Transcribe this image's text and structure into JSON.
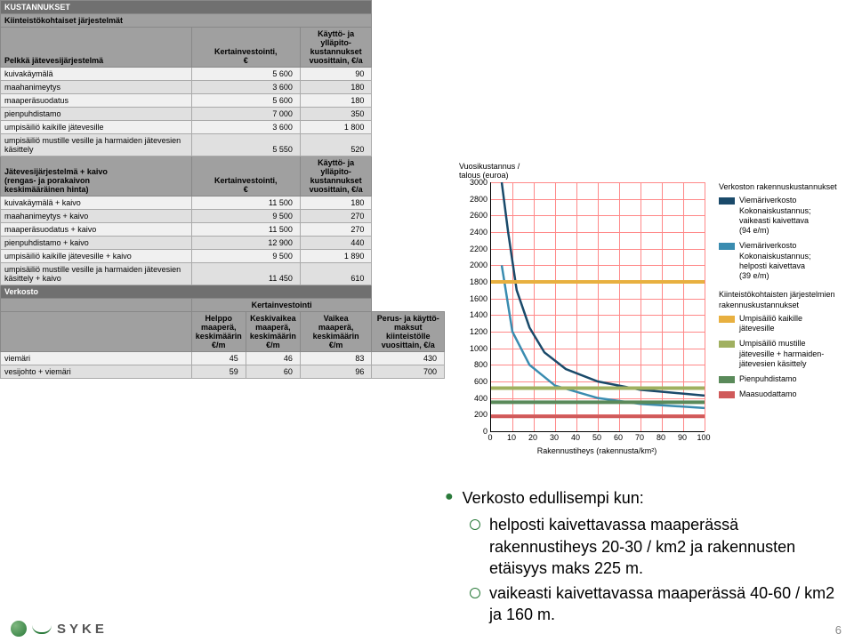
{
  "costs_table": {
    "section1_title": "KUSTANNUKSET",
    "section1_sub": "Kiinteistökohtaiset järjestelmät",
    "group1_label": "Pelkkä jätevesijärjestelmä",
    "group1_col_invest": "Kertainvestointi,\n€",
    "group1_col_annual": "Käyttö- ja ylläpito-\nkustannukset\nvuosittain, €/a",
    "group1_rows": [
      {
        "label": "kuivakäymälä",
        "invest": "5 600",
        "annual": "90"
      },
      {
        "label": "maahanimeytys",
        "invest": "3 600",
        "annual": "180"
      },
      {
        "label": "maaperäsuodatus",
        "invest": "5 600",
        "annual": "180"
      },
      {
        "label": "pienpuhdistamo",
        "invest": "7 000",
        "annual": "350"
      },
      {
        "label": "umpisäiliö kaikille jätevesille",
        "invest": "3 600",
        "annual": "1 800"
      },
      {
        "label": "umpisäiliö mustille vesille ja harmaiden jätevesien käsittely",
        "invest": "5 550",
        "annual": "520"
      }
    ],
    "group2_label": "Jätevesijärjestelmä + kaivo\n(rengas- ja porakaivon\nkeskimääräinen hinta)",
    "group2_col_invest": "Kertainvestointi,\n€",
    "group2_col_annual": "Käyttö- ja ylläpito-\nkustannukset\nvuosittain, €/a",
    "group2_rows": [
      {
        "label": "kuivakäymälä + kaivo",
        "invest": "11 500",
        "annual": "180"
      },
      {
        "label": "maahanimeytys + kaivo",
        "invest": "9 500",
        "annual": "270"
      },
      {
        "label": "maaperäsuodatus + kaivo",
        "invest": "11 500",
        "annual": "270"
      },
      {
        "label": "pienpuhdistamo + kaivo",
        "invest": "12 900",
        "annual": "440"
      },
      {
        "label": "umpisäiliö kaikille jätevesille + kaivo",
        "invest": "9 500",
        "annual": "1 890"
      },
      {
        "label": "umpisäiliö mustille vesille ja harmaiden jätevesien käsittely + kaivo",
        "invest": "11 450",
        "annual": "610"
      }
    ],
    "section3_title": "Verkosto",
    "verkosto_super": "Kertainvestointi",
    "verkosto_cols": [
      "Helppo\nmaaperä,\nkeskimäärin\n€/m",
      "Keskivaikea\nmaaperä,\nkeskimäärin\n€/m",
      "Vaikea\nmaaperä,\nkeskimäärin\n€/m",
      "Perus- ja käyttö-\nmaksut kiinteistölle\nvuosittain, €/a"
    ],
    "verkosto_rows": [
      {
        "label": "viemäri",
        "vals": [
          "45",
          "46",
          "83",
          "430"
        ]
      },
      {
        "label": "vesijohto + viemäri",
        "vals": [
          "59",
          "60",
          "96",
          "700"
        ]
      }
    ]
  },
  "chart": {
    "ylabel": "Vuosikustannus /\ntalous (euroa)",
    "xlabel": "Rakennustiheys (rakennusta/km²)",
    "xlim": [
      0,
      100
    ],
    "ylim": [
      0,
      3000
    ],
    "xticks": [
      0,
      10,
      20,
      30,
      40,
      50,
      60,
      70,
      80,
      90,
      100
    ],
    "yticks": [
      0,
      200,
      400,
      600,
      800,
      1000,
      1200,
      1400,
      1600,
      1800,
      2000,
      2200,
      2400,
      2600,
      2800,
      3000
    ],
    "grid_color": "#ff8888",
    "background_color": "#ffffff",
    "legend_title1": "Verkoston rakennuskustannukset",
    "legend_title2": "Kiinteistökohtaisten järjestelmien\nrakennuskustannukset",
    "series_curves": [
      {
        "name": "s1",
        "label": "Viemäriverkosto\nKokonaiskustannus;\nvaikeasti kaivettava\n(94 e/m)",
        "color": "#1a4a6a",
        "width": 2.5,
        "points": [
          [
            5,
            3000
          ],
          [
            8,
            2400
          ],
          [
            12,
            1700
          ],
          [
            18,
            1250
          ],
          [
            25,
            950
          ],
          [
            35,
            750
          ],
          [
            50,
            600
          ],
          [
            70,
            500
          ],
          [
            100,
            430
          ]
        ]
      },
      {
        "name": "s2",
        "label": "Viemäriverkosto\nKokonaiskustannus;\nhelposti kaivettava\n(39 e/m)",
        "color": "#3a8cb0",
        "width": 2.5,
        "points": [
          [
            5,
            2000
          ],
          [
            10,
            1200
          ],
          [
            18,
            800
          ],
          [
            30,
            550
          ],
          [
            50,
            400
          ],
          [
            70,
            330
          ],
          [
            100,
            280
          ]
        ]
      }
    ],
    "series_flat": [
      {
        "name": "f1",
        "label": "Umpisäiliö kaikille\njätevesille",
        "color": "#e8b040",
        "y": 1800
      },
      {
        "name": "f2",
        "label": "Umpisäiliö mustille\njätevesille + harmaiden-\njätevesien käsittely",
        "color": "#a0b060",
        "y": 520
      },
      {
        "name": "f3",
        "label": "Pienpuhdistamo",
        "color": "#5a8a5a",
        "y": 350
      },
      {
        "name": "f4",
        "label": "Maasuodattamo",
        "color": "#d05a5a",
        "y": 180
      }
    ]
  },
  "bullets": {
    "main": "Verkosto edullisempi kun:",
    "subs": [
      "helposti kaivettavassa maaperässä rakennustiheys 20-30 / km2 ja rakennusten etäisyys maks 225 m.",
      "vaikeasti kaivettavassa maaperässä 40-60 / km2 ja 160 m."
    ]
  },
  "logo_text": "SYKE",
  "slide_number": "6"
}
